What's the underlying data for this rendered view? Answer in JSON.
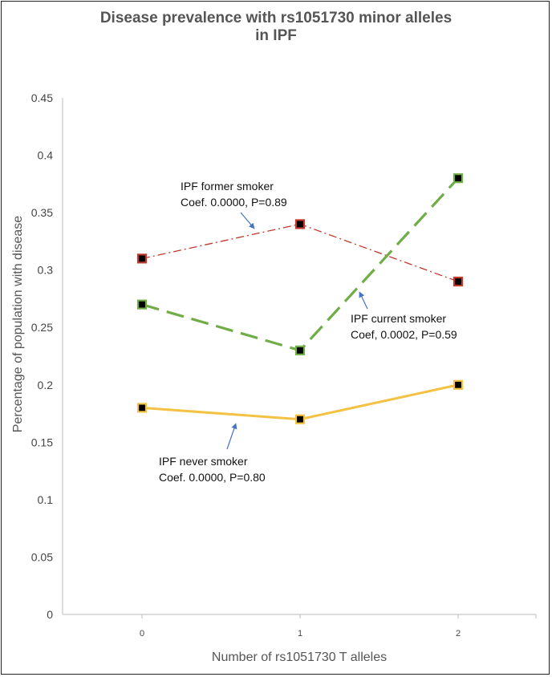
{
  "chart_data": {
    "type": "line",
    "title_lines": [
      "Disease prevalence with rs1051730 minor alleles",
      "in IPF"
    ],
    "xlabel": "Number of rs1051730 T alleles",
    "ylabel": "Percentage of population with disease",
    "categories": [
      "0",
      "1",
      "2"
    ],
    "ylim": [
      0,
      0.45
    ],
    "yticks": [
      "0.45",
      "0.4",
      "0.35",
      "0.3",
      "0.25",
      "0.2",
      "0.15",
      "0.1",
      "0.05",
      "0"
    ],
    "grid": false,
    "series": [
      {
        "values": [
          0.31,
          0.34,
          0.29
        ],
        "color": "#c0392b",
        "style": "dash-dot",
        "marker_color": "#c0392b"
      },
      {
        "values": [
          0.27,
          0.23,
          0.38
        ],
        "color": "#70ad47",
        "style": "long-dash",
        "marker_color": "#70ad47"
      },
      {
        "values": [
          0.18,
          0.17,
          0.2
        ],
        "color": "#f4c242",
        "style": "solid",
        "marker_color": "#f4c242"
      }
    ],
    "annotations": [
      {
        "lines": [
          "IPF former smoker",
          "Coef. 0.0000, P=0.89"
        ]
      },
      {
        "lines": [
          "IPF current smoker",
          "Coef, 0.0002, P=0.59"
        ]
      },
      {
        "lines": [
          "IPF never smoker",
          "Coef. 0.0000, P=0.80"
        ]
      }
    ]
  }
}
